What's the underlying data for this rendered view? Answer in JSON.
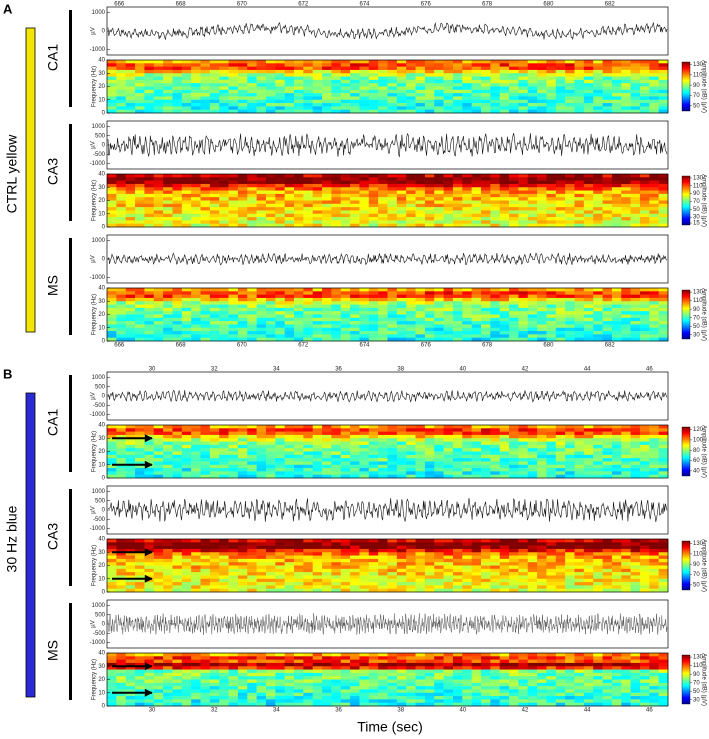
{
  "trace_ylabel": "µV",
  "spec_ylabel": "Frequency (Hz)",
  "colorbar_label": "Amplitude (dB) (µV)",
  "xlabel": "Time (sec)",
  "panels": [
    {
      "letter": "A",
      "condition": "CTRL yellow",
      "color": "#f2e600",
      "xlim": [
        665.6,
        683.9
      ],
      "xticks": [
        666,
        668,
        670,
        672,
        674,
        676,
        678,
        680,
        682
      ],
      "regions": [
        {
          "name": "CA1",
          "trace": {
            "ylim": [
              -1300,
              1300
            ],
            "yticks": [
              -1000,
              0,
              1000
            ]
          },
          "spectrogram": {
            "ylim": [
              0,
              40
            ],
            "yticks": [
              0,
              10,
              20,
              30,
              40
            ],
            "clim": [
              40,
              135
            ],
            "colorbar_ticks": [
              130,
              110,
              90,
              70,
              50
            ]
          }
        },
        {
          "name": "CA3",
          "trace": {
            "ylim": [
              -1300,
              1300
            ],
            "yticks": [
              -1000,
              -500,
              0,
              500,
              1000
            ]
          },
          "spectrogram": {
            "ylim": [
              0,
              40
            ],
            "yticks": [
              0,
              10,
              20,
              30,
              40
            ],
            "clim": [
              10,
              135
            ],
            "colorbar_ticks": [
              130,
              110,
              90,
              70,
              50,
              30,
              15
            ]
          }
        },
        {
          "name": "MS",
          "trace": {
            "ylim": [
              -1300,
              1300
            ],
            "yticks": [
              -1000,
              0,
              1000
            ]
          },
          "spectrogram": {
            "ylim": [
              0,
              40
            ],
            "yticks": [
              0,
              10,
              20,
              30,
              40
            ],
            "clim": [
              20,
              135
            ],
            "colorbar_ticks": [
              130,
              110,
              90,
              70,
              50,
              30
            ]
          }
        }
      ]
    },
    {
      "letter": "B",
      "condition": "30 Hz blue",
      "color": "#2b2bd6",
      "xlim": [
        28.55,
        46.6
      ],
      "xticks": [
        30,
        32,
        34,
        36,
        38,
        40,
        42,
        44,
        46
      ],
      "regions": [
        {
          "name": "CA1",
          "trace": {
            "ylim": [
              -1300,
              1300
            ],
            "yticks": [
              -1000,
              -500,
              0,
              500,
              1000
            ]
          },
          "spectrogram": {
            "ylim": [
              0,
              40
            ],
            "yticks": [
              0,
              10,
              20,
              30,
              40
            ],
            "clim": [
              30,
              125
            ],
            "colorbar_ticks": [
              120,
              100,
              80,
              60,
              40
            ]
          }
        },
        {
          "name": "CA3",
          "trace": {
            "ylim": [
              -1300,
              1300
            ],
            "yticks": [
              -1000,
              -500,
              0,
              500,
              1000
            ]
          },
          "spectrogram": {
            "ylim": [
              0,
              40
            ],
            "yticks": [
              0,
              10,
              20,
              30,
              40
            ],
            "clim": [
              40,
              135
            ],
            "colorbar_ticks": [
              130,
              110,
              90,
              70,
              50
            ]
          }
        },
        {
          "name": "MS",
          "trace": {
            "ylim": [
              -1300,
              1300
            ],
            "yticks": [
              -1000,
              -500,
              0,
              500,
              1000
            ]
          },
          "spectrogram": {
            "ylim": [
              0,
              40
            ],
            "yticks": [
              0,
              10,
              20,
              30,
              40
            ],
            "clim": [
              20,
              135
            ],
            "colorbar_ticks": [
              130,
              110,
              90,
              70,
              50,
              30
            ]
          }
        }
      ]
    }
  ]
}
